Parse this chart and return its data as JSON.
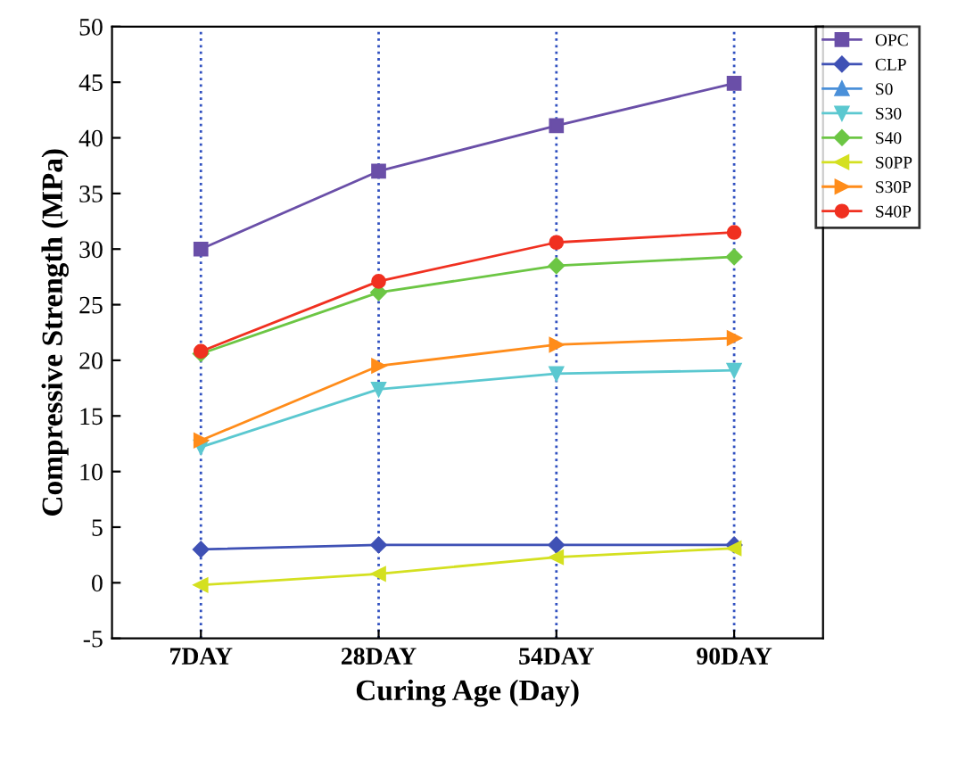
{
  "chart_data": {
    "type": "line",
    "xlabel": "Curing Age (Day)",
    "ylabel": "Compressive Strength (MPa)",
    "categories": [
      "7DAY",
      "28DAY",
      "54DAY",
      "90DAY"
    ],
    "series": [
      {
        "name": "OPC",
        "color": "#6a4fa8",
        "marker": "square",
        "values": [
          30.0,
          37.0,
          41.1,
          44.9
        ]
      },
      {
        "name": "CLP",
        "color": "#3f51b5",
        "marker": "diamond",
        "values": [
          3.0,
          3.4,
          3.4,
          3.4
        ]
      },
      {
        "name": "S0",
        "color": "#4a90d9",
        "marker": "triangle",
        "values": [
          null,
          null,
          null,
          null
        ]
      },
      {
        "name": "S30",
        "color": "#5bc8d0",
        "marker": "triangle_down",
        "values": [
          12.2,
          17.4,
          18.8,
          19.1
        ]
      },
      {
        "name": "S40",
        "color": "#6cc644",
        "marker": "diamond",
        "values": [
          20.6,
          26.1,
          28.5,
          29.3
        ]
      },
      {
        "name": "S0PP",
        "color": "#d4e020",
        "marker": "triangle_left",
        "values": [
          -0.2,
          0.8,
          2.3,
          3.1
        ]
      },
      {
        "name": "S30P",
        "color": "#ff8c1a",
        "marker": "triangle_right",
        "values": [
          12.8,
          19.5,
          21.4,
          22.0
        ]
      },
      {
        "name": "S40P",
        "color": "#f03020",
        "marker": "circle",
        "values": [
          20.8,
          27.1,
          30.6,
          31.5
        ]
      }
    ],
    "ylim": [
      -5,
      50
    ],
    "yticks": [
      -5,
      0,
      5,
      10,
      15,
      20,
      25,
      30,
      35,
      40,
      45,
      50
    ],
    "grid": "x",
    "legend": "top right",
    "line_style": "solid"
  }
}
